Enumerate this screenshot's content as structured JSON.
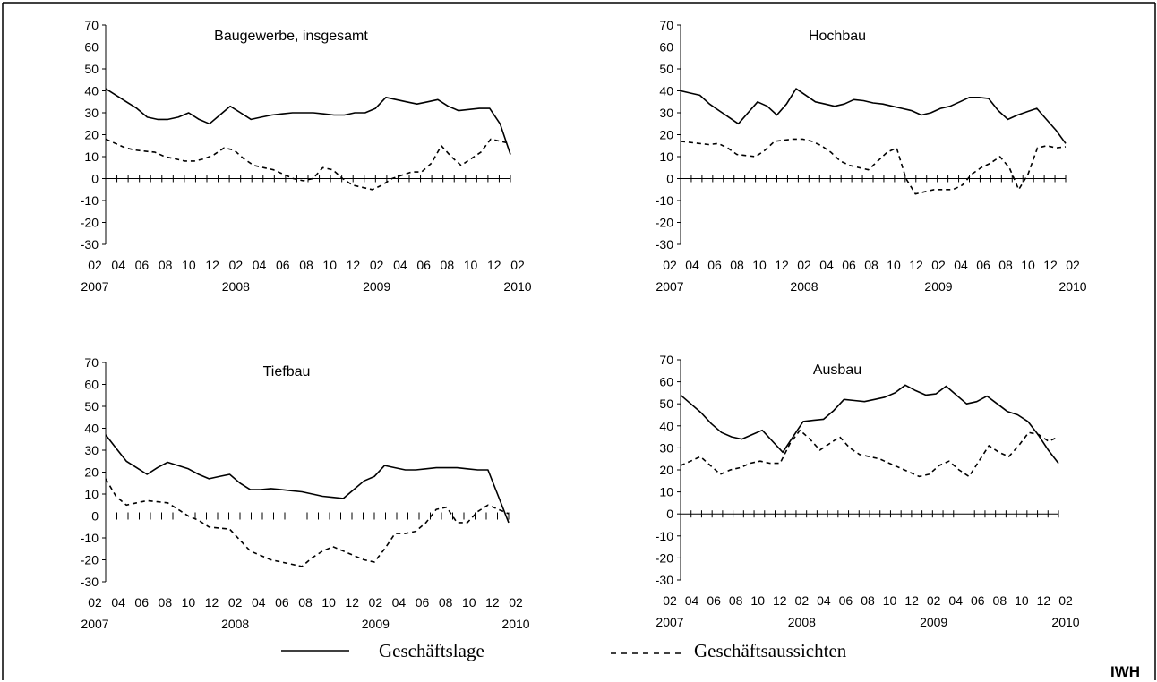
{
  "chart_data": [
    {
      "type": "line",
      "title": "Baugewerbe, insgesamt",
      "ylim": [
        -30,
        70
      ],
      "yticks": [
        -30,
        -20,
        -10,
        0,
        10,
        20,
        30,
        40,
        50,
        60,
        70
      ],
      "x_tick_labels": [
        "02",
        "04",
        "06",
        "08",
        "10",
        "12",
        "02",
        "04",
        "06",
        "08",
        "10",
        "12",
        "02",
        "04",
        "06",
        "08",
        "10",
        "12",
        "02"
      ],
      "x_year_labels": [
        "2007",
        "2008",
        "2009",
        "2010"
      ],
      "series": [
        {
          "name": "Geschäftslage",
          "style": "solid",
          "values": [
            41,
            38,
            35,
            32,
            28,
            27,
            27,
            28,
            30,
            27,
            25,
            29,
            33,
            30,
            27,
            28,
            29,
            29.5,
            30,
            30,
            30,
            29.5,
            29,
            29,
            30,
            30,
            32,
            37,
            36,
            35,
            34,
            35,
            36,
            33,
            31,
            31.5,
            32,
            32,
            25,
            11
          ]
        },
        {
          "name": "Geschäftsaussichten",
          "style": "dashed",
          "values": [
            18,
            16,
            14,
            13,
            12.5,
            12,
            10,
            9,
            8,
            8,
            9,
            11,
            14,
            13,
            9,
            6,
            5,
            4,
            2,
            0,
            -1,
            0,
            5,
            4,
            0,
            -3,
            -4,
            -5,
            -3,
            0,
            1.5,
            3,
            3,
            7,
            15,
            10,
            6,
            9,
            12,
            18,
            17,
            16
          ]
        }
      ]
    },
    {
      "type": "line",
      "title": "Hochbau",
      "ylim": [
        -30,
        70
      ],
      "yticks": [
        -30,
        -20,
        -10,
        0,
        10,
        20,
        30,
        40,
        50,
        60,
        70
      ],
      "x_tick_labels": [
        "02",
        "04",
        "06",
        "08",
        "10",
        "12",
        "02",
        "04",
        "06",
        "08",
        "10",
        "12",
        "02",
        "04",
        "06",
        "08",
        "10",
        "12",
        "02"
      ],
      "x_year_labels": [
        "2007",
        "2008",
        "2009",
        "2010"
      ],
      "series": [
        {
          "name": "Geschäftslage",
          "style": "solid",
          "values": [
            40,
            39,
            38,
            34,
            31,
            28,
            25,
            30,
            35,
            33,
            29,
            34,
            41,
            38,
            35,
            34,
            33,
            34,
            36,
            35.5,
            34.5,
            34,
            33,
            32,
            31,
            29,
            30,
            32,
            33,
            35,
            37,
            37,
            36.5,
            31,
            27,
            29,
            30.5,
            32,
            27,
            22,
            16
          ]
        },
        {
          "name": "Geschäftsaussichten",
          "style": "dashed",
          "values": [
            17,
            16.5,
            16,
            15.5,
            16,
            14,
            11,
            10.5,
            10,
            13,
            17,
            17.5,
            18,
            18,
            17,
            15,
            12,
            8,
            6,
            5,
            4,
            8,
            12,
            14,
            0,
            -7,
            -6,
            -5,
            -5,
            -5,
            -3,
            2,
            5,
            7,
            10,
            5,
            -5,
            2,
            14,
            15,
            14,
            14.5
          ]
        }
      ]
    },
    {
      "type": "line",
      "title": "Tiefbau",
      "ylim": [
        -30,
        70
      ],
      "yticks": [
        -30,
        -20,
        -10,
        0,
        10,
        20,
        30,
        40,
        50,
        60,
        70
      ],
      "x_tick_labels": [
        "02",
        "04",
        "06",
        "08",
        "10",
        "12",
        "02",
        "04",
        "06",
        "08",
        "10",
        "12",
        "02",
        "04",
        "06",
        "08",
        "10",
        "12",
        "02"
      ],
      "x_year_labels": [
        "2007",
        "2008",
        "2009",
        "2010"
      ],
      "series": [
        {
          "name": "Geschäftslage",
          "style": "solid",
          "values": [
            37,
            31,
            25,
            22,
            19,
            22,
            24.5,
            23,
            21.5,
            19,
            17,
            18,
            19,
            15,
            12,
            12,
            12.5,
            12,
            11.5,
            11,
            10,
            9,
            8.5,
            8,
            12,
            16,
            18,
            23,
            22,
            21,
            21,
            21.5,
            22,
            22,
            22,
            21.5,
            21,
            21,
            9,
            -3
          ]
        },
        {
          "name": "Geschäftsaussichten",
          "style": "dashed",
          "values": [
            17,
            9,
            5,
            6,
            7,
            6.5,
            6,
            3,
            0,
            -2,
            -5,
            -5.5,
            -6,
            -11,
            -16,
            -18,
            -20,
            -21,
            -22,
            -23,
            -19,
            -16,
            -14,
            -16,
            -18,
            -20,
            -21,
            -15,
            -8,
            -8,
            -7,
            -3,
            3,
            4,
            -3,
            -3,
            2,
            5,
            3,
            1
          ]
        }
      ]
    },
    {
      "type": "line",
      "title": "Ausbau",
      "ylim": [
        -30,
        70
      ],
      "yticks": [
        -30,
        -20,
        -10,
        0,
        10,
        20,
        30,
        40,
        50,
        60,
        70
      ],
      "x_tick_labels": [
        "02",
        "04",
        "06",
        "08",
        "10",
        "12",
        "02",
        "04",
        "06",
        "08",
        "10",
        "12",
        "02",
        "04",
        "06",
        "08",
        "10",
        "12",
        "02"
      ],
      "x_year_labels": [
        "2007",
        "2008",
        "2009",
        "2010"
      ],
      "series": [
        {
          "name": "Geschäftslage",
          "style": "solid",
          "values": [
            54,
            50,
            46,
            41,
            37,
            35,
            34,
            36,
            38,
            33,
            28,
            35,
            42,
            42.5,
            43,
            47,
            52,
            51.5,
            51,
            52,
            53,
            55,
            58.5,
            56,
            54,
            54.5,
            58,
            54,
            50,
            51,
            53.5,
            50,
            46.5,
            45,
            42,
            36,
            29,
            23
          ]
        },
        {
          "name": "Geschäftsaussichten",
          "style": "dashed",
          "values": [
            22,
            24,
            26,
            22,
            18,
            20,
            21,
            23,
            24,
            23,
            23,
            32,
            38,
            34,
            29,
            32,
            35,
            30,
            27,
            26,
            25,
            23,
            21,
            19,
            17,
            18,
            22,
            24,
            20,
            17,
            24,
            31,
            28,
            26,
            31,
            37,
            36,
            33,
            35
          ]
        }
      ]
    }
  ],
  "legend": {
    "items": [
      {
        "label": "Geschäftslage",
        "style": "solid"
      },
      {
        "label": "Geschäftsaussichten",
        "style": "dashed"
      }
    ]
  },
  "footer": {
    "logo": "IWH"
  }
}
